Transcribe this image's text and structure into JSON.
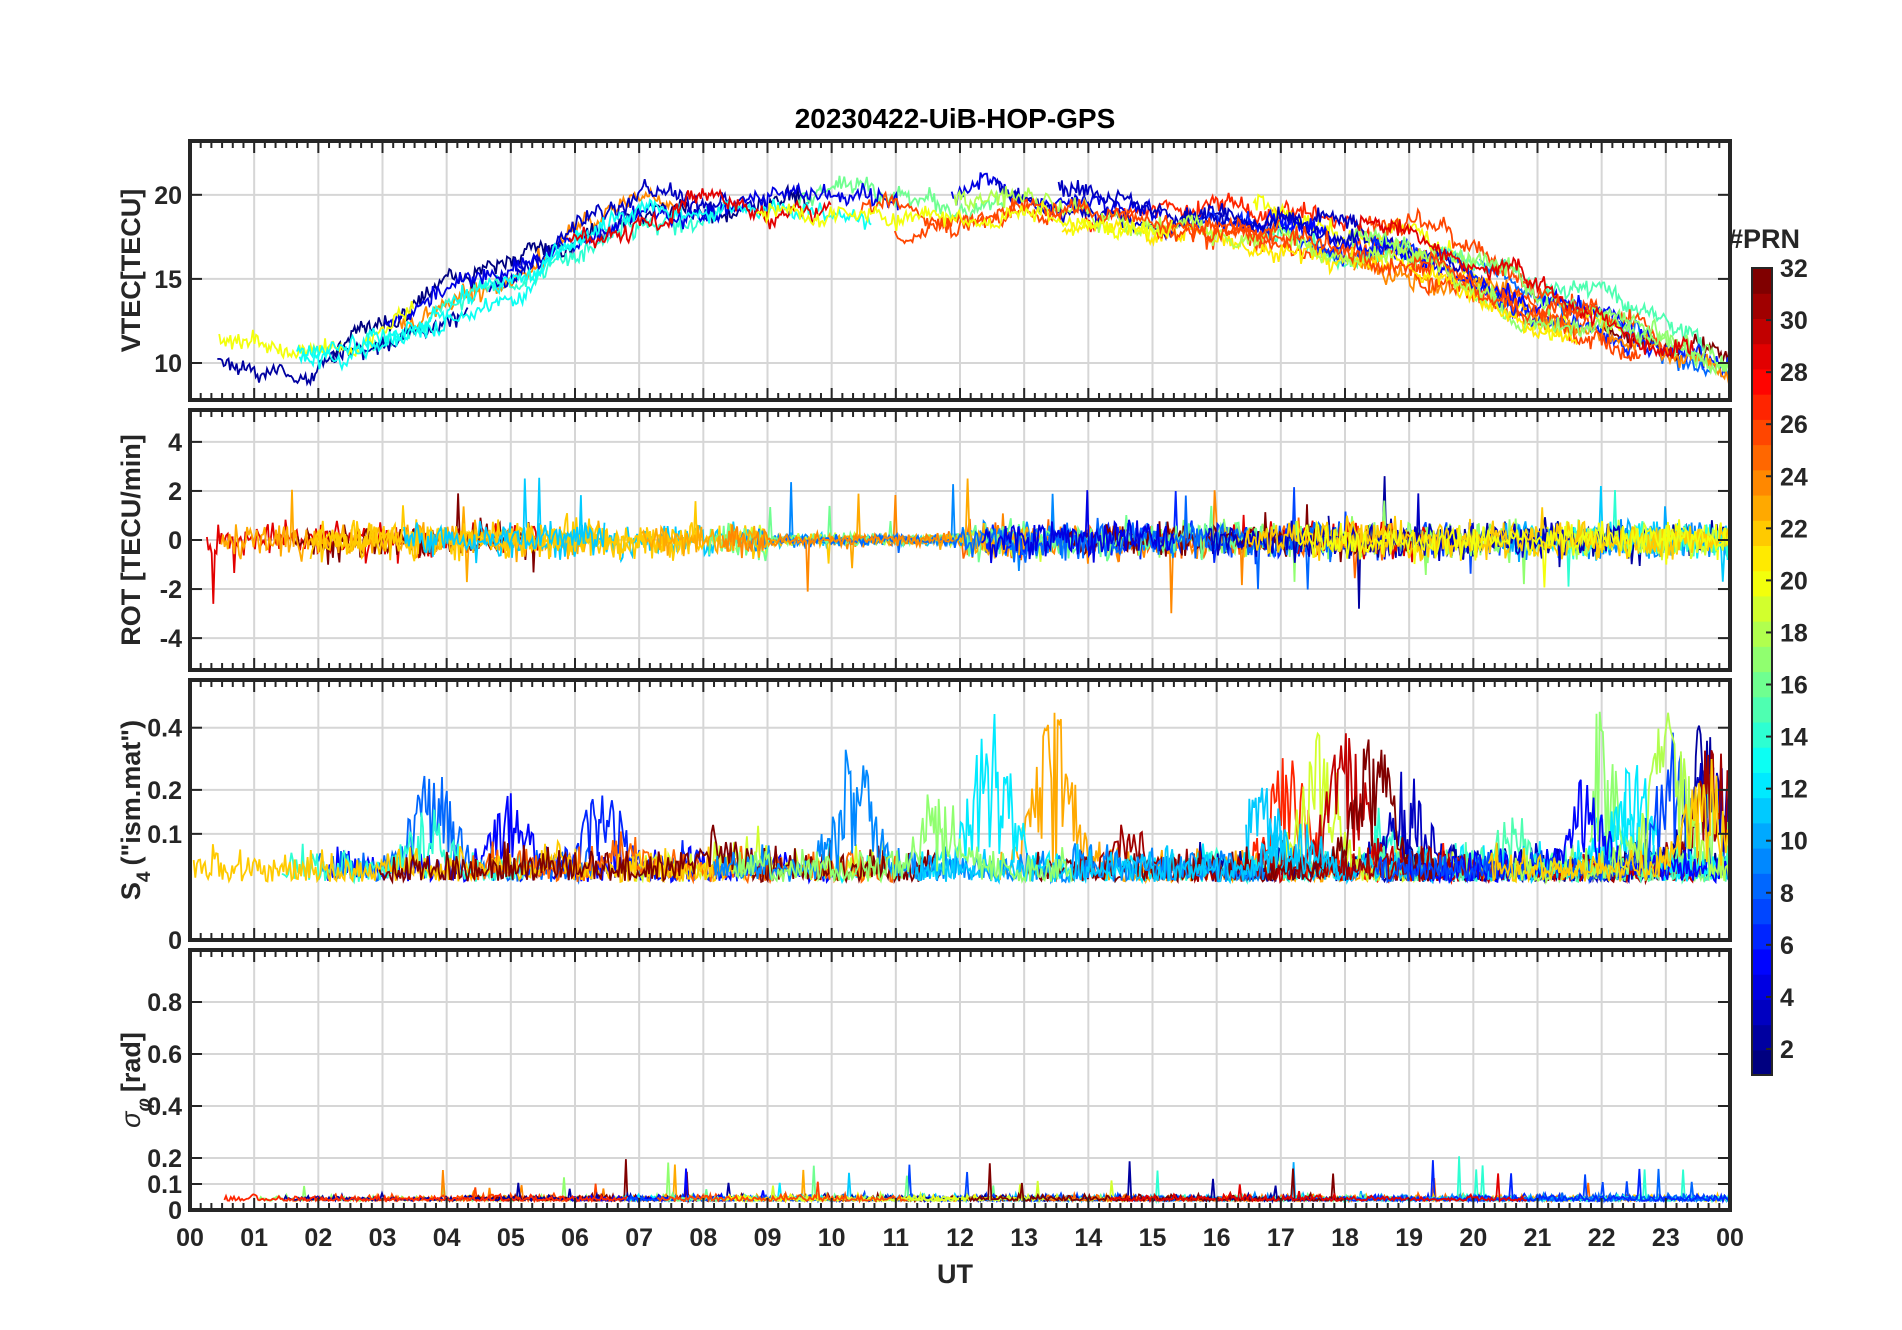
{
  "chart_data": {
    "title": "20230422-UiB-HOP-GPS",
    "xlabel": "UT",
    "x_ticks": [
      "00",
      "01",
      "02",
      "03",
      "04",
      "05",
      "06",
      "07",
      "08",
      "09",
      "10",
      "11",
      "12",
      "13",
      "14",
      "15",
      "16",
      "17",
      "18",
      "19",
      "20",
      "21",
      "22",
      "23",
      "00"
    ],
    "x_range": [
      0,
      24
    ],
    "colorbar": {
      "label": "#PRN",
      "range": [
        1,
        32
      ],
      "ticks": [
        "2",
        "4",
        "6",
        "8",
        "10",
        "12",
        "14",
        "16",
        "18",
        "20",
        "22",
        "24",
        "26",
        "28",
        "30",
        "32"
      ],
      "colormap": "jet"
    },
    "panels": [
      {
        "id": "vtec",
        "type": "line",
        "ylabel": "VTEC[TECU]",
        "ylim": [
          7.8,
          23.2
        ],
        "yticks": [
          "10",
          "15",
          "20"
        ],
        "ytick_values": [
          10,
          15,
          20
        ],
        "series_note": "one trace per GPS PRN, coloured by PRN",
        "trend_tecu": {
          "x": [
            0,
            2,
            3,
            4,
            5,
            6,
            7,
            8,
            10,
            12,
            13,
            14,
            15,
            16,
            17,
            18,
            19,
            20,
            21,
            22,
            23,
            24
          ],
          "y": [
            11,
            10,
            11.5,
            13.5,
            15,
            17,
            19,
            19.5,
            19.5,
            19,
            19.5,
            19,
            18.5,
            18.5,
            18,
            17,
            16.5,
            15,
            13,
            12.5,
            11,
            10
          ]
        }
      },
      {
        "id": "rot",
        "type": "line",
        "ylabel": "ROT [TECU/min]",
        "ylim": [
          -5.3,
          5.3
        ],
        "yticks": [
          "-4",
          "-2",
          "0",
          "2",
          "4"
        ],
        "ytick_values": [
          -4,
          -2,
          0,
          2,
          4
        ]
      },
      {
        "id": "s4",
        "type": "line",
        "ylabel": "S4 (\"ism.mat\")",
        "ylabel_main": "S",
        "ylabel_sub": "4",
        "ylabel_rest": "(\"ism.mat\")",
        "ylim": [
          0,
          0.6
        ],
        "yticks": [
          "0",
          "0.1",
          "0.2",
          "0.4"
        ],
        "ytick_values": [
          0,
          0.1,
          0.2,
          0.4
        ],
        "scale": "sqrt"
      },
      {
        "id": "sigphi",
        "type": "line",
        "ylabel": "σφ[rad]",
        "ylabel_main": "σ",
        "ylabel_sub": "φ",
        "ylabel_rest": "[rad]",
        "ylim": [
          0,
          1.0
        ],
        "yticks": [
          "0",
          "0.1",
          "0.2",
          "0.4",
          "0.6",
          "0.8"
        ],
        "ytick_values": [
          0,
          0.1,
          0.2,
          0.4,
          0.6,
          0.8
        ]
      }
    ]
  }
}
